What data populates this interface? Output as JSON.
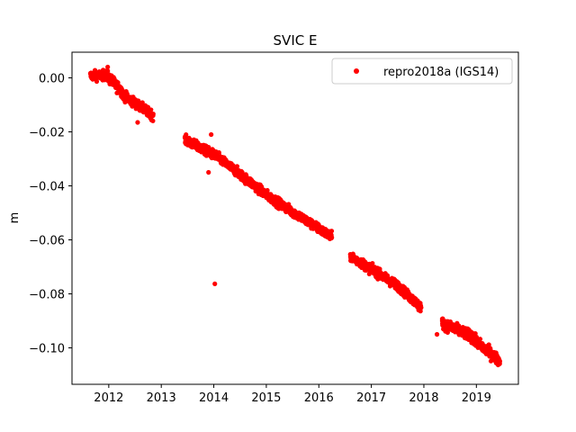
{
  "chart_data": {
    "type": "scatter",
    "title": "SVIC E",
    "xlabel": "",
    "ylabel": "m",
    "xlim": [
      2011.3,
      2019.8
    ],
    "ylim": [
      -0.1135,
      0.0095
    ],
    "x_ticks": [
      2012,
      2013,
      2014,
      2015,
      2016,
      2017,
      2018,
      2019
    ],
    "y_ticks": [
      0.0,
      -0.02,
      -0.04,
      -0.06,
      -0.08,
      -0.1
    ],
    "y_tick_labels": [
      "0.00",
      "−0.02",
      "−0.04",
      "−0.06",
      "−0.08",
      "−0.10"
    ],
    "grid": false,
    "legend_position": "top-right",
    "series": [
      {
        "name": "repro2018a (IGS14)",
        "color": "#ff0000",
        "marker": "circle",
        "segments": [
          {
            "x_start": 2011.65,
            "x_end": 2011.95,
            "y_start": 0.0008,
            "y_end": 0.001,
            "spread": 0.0012
          },
          {
            "x_start": 2011.95,
            "x_end": 2012.25,
            "y_start": 0.001,
            "y_end": -0.005,
            "spread": 0.0014
          },
          {
            "x_start": 2012.25,
            "x_end": 2012.85,
            "y_start": -0.006,
            "y_end": -0.014,
            "spread": 0.0012
          },
          {
            "x_start": 2013.45,
            "x_end": 2014.05,
            "y_start": -0.023,
            "y_end": -0.029,
            "spread": 0.0012
          },
          {
            "x_start": 2014.05,
            "x_end": 2015.05,
            "y_start": -0.029,
            "y_end": -0.044,
            "spread": 0.0012
          },
          {
            "x_start": 2015.05,
            "x_end": 2016.25,
            "y_start": -0.044,
            "y_end": -0.059,
            "spread": 0.0012
          },
          {
            "x_start": 2016.6,
            "x_end": 2017.5,
            "y_start": -0.066,
            "y_end": -0.077,
            "spread": 0.0012
          },
          {
            "x_start": 2017.5,
            "x_end": 2017.95,
            "y_start": -0.077,
            "y_end": -0.085,
            "spread": 0.0012
          },
          {
            "x_start": 2018.35,
            "x_end": 2018.95,
            "y_start": -0.091,
            "y_end": -0.096,
            "spread": 0.0014
          },
          {
            "x_start": 2018.95,
            "x_end": 2019.45,
            "y_start": -0.097,
            "y_end": -0.105,
            "spread": 0.0014
          }
        ],
        "outliers": [
          {
            "x": 2014.02,
            "y": -0.0763
          },
          {
            "x": 2013.9,
            "y": -0.035
          },
          {
            "x": 2013.95,
            "y": -0.021
          },
          {
            "x": 2012.55,
            "y": -0.0165
          },
          {
            "x": 2011.98,
            "y": 0.004
          },
          {
            "x": 2018.25,
            "y": -0.095
          },
          {
            "x": 2018.35,
            "y": -0.09
          },
          {
            "x": 2017.9,
            "y": -0.086
          }
        ]
      }
    ]
  }
}
